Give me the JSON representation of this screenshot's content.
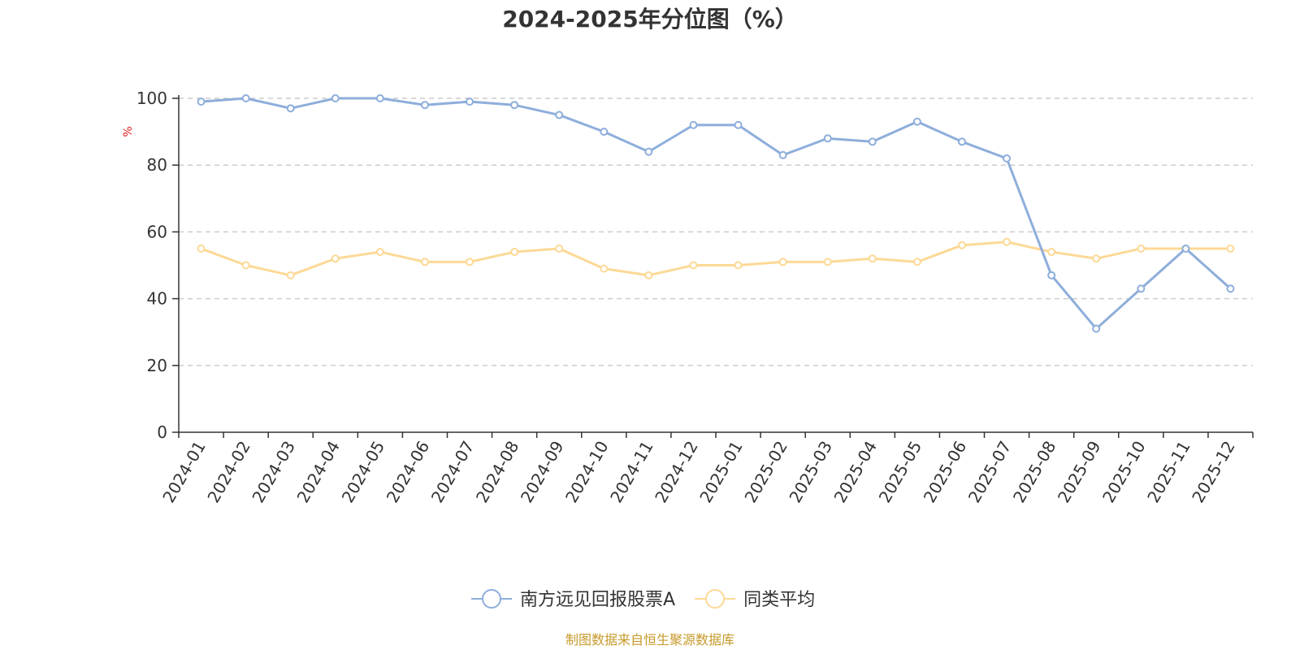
{
  "chart_data": {
    "type": "line",
    "title": "2024-2025年分位图（%）",
    "ylabel": "%",
    "ylim": [
      0,
      100
    ],
    "yticks": [
      0,
      20,
      40,
      60,
      80,
      100
    ],
    "grid": true,
    "legend_position": "bottom",
    "categories": [
      "2024-01",
      "2024-02",
      "2024-03",
      "2024-04",
      "2024-05",
      "2024-06",
      "2024-07",
      "2024-08",
      "2024-09",
      "2024-10",
      "2024-11",
      "2024-12",
      "2025-01",
      "2025-02",
      "2025-03",
      "2025-04",
      "2025-05",
      "2025-06",
      "2025-07",
      "2025-08",
      "2025-09",
      "2025-10",
      "2025-11",
      "2025-12"
    ],
    "series": [
      {
        "name": "南方远见回报股票A",
        "color": "#8eaedb",
        "values": [
          99,
          100,
          97,
          100,
          100,
          98,
          99,
          98,
          95,
          90,
          84,
          92,
          92,
          83,
          88,
          87,
          93,
          87,
          82,
          47,
          31,
          43,
          55,
          43
        ]
      },
      {
        "name": "同类平均",
        "color": "#fcd996",
        "values": [
          55,
          50,
          47,
          52,
          54,
          51,
          51,
          54,
          55,
          49,
          47,
          50,
          50,
          51,
          51,
          52,
          51,
          56,
          57,
          54,
          52,
          55,
          55,
          55
        ]
      }
    ],
    "source": "制图数据来自恒生聚源数据库",
    "source_color": "#c79a2a",
    "ylabel_color": "#e02020"
  }
}
